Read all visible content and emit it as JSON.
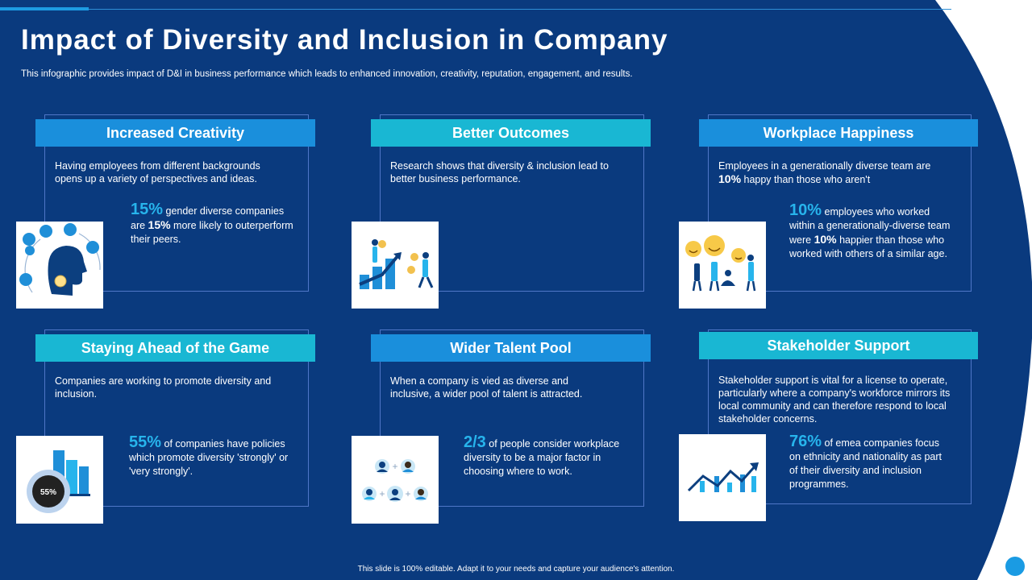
{
  "slide": {
    "title": "Impact of Diversity and Inclusion in Company",
    "subtitle": "This infographic provides impact of D&I in business performance which leads to enhanced innovation, creativity, reputation, engagement, and results.",
    "footer": "This slide is 100% editable. Adapt it to your needs and capture your audience's attention."
  },
  "colors": {
    "background": "#0a3a7e",
    "accent_blue": "#1a8fdc",
    "accent_teal": "#19b7d3",
    "highlight": "#27b4ec"
  },
  "cards": [
    {
      "heading": "Increased Creativity",
      "description": "Having employees from different backgrounds opens up a variety of perspectives and ideas.",
      "stat_value": "15%",
      "stat_text_1": " gender diverse companies are ",
      "stat_bold": "15%",
      "stat_text_2": " more likely to outerperform their peers.",
      "icon": "creative-mind-icon"
    },
    {
      "heading": "Better Outcomes",
      "description": "Research shows that diversity & inclusion lead to better business performance.",
      "icon": "growth-chart-people-icon"
    },
    {
      "heading": "Workplace Happiness",
      "description_1": "Employees in a generationally diverse team are ",
      "description_bold": "10%",
      "description_2": " happy than those who aren't",
      "stat_value": "10%",
      "stat_text_1": " employees who worked within a generationally-diverse team were ",
      "stat_bold": "10%",
      "stat_text_2": " happier than those who worked with others of a similar age.",
      "icon": "happy-team-icon"
    },
    {
      "heading": "Staying Ahead of the Game",
      "description": "Companies are working to promote diversity and inclusion.",
      "stat_value": "55%",
      "stat_text": " of companies have policies which promote diversity 'strongly' or 'very strongly'.",
      "icon": "buildings-donut-icon",
      "icon_label": "55%"
    },
    {
      "heading": "Wider Talent Pool",
      "description": "When a company is vied as diverse and inclusive, a wider pool of talent is attracted.",
      "stat_value": "2/3",
      "stat_text": " of people consider workplace diversity to be a major factor in choosing where to work.",
      "icon": "talent-pool-icon"
    },
    {
      "heading": "Stakeholder Support",
      "description": "Stakeholder support is vital for a license to operate, particularly where a company's workforce mirrors its local community and can therefore respond to local stakeholder concerns.",
      "stat_value": "76%",
      "stat_text": " of emea companies focus on ethnicity and nationality as part of their diversity and inclusion programmes.",
      "icon": "rising-trend-icon"
    }
  ]
}
